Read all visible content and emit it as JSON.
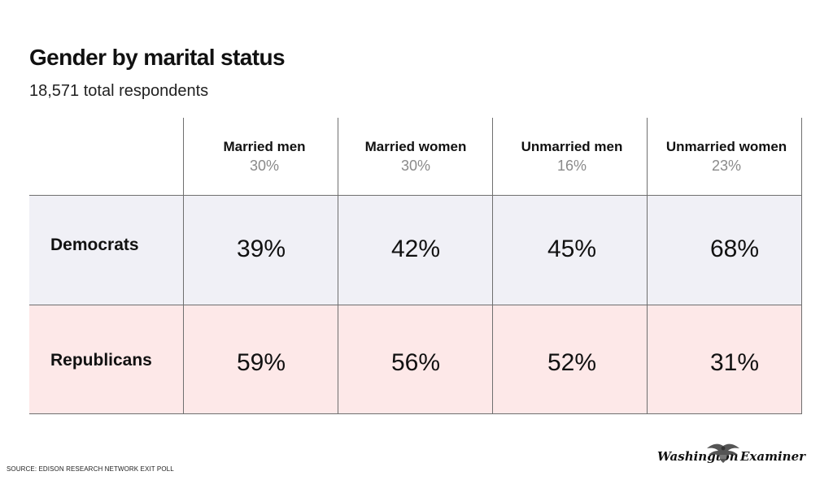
{
  "title": "Gender by marital status",
  "subtitle": "18,571 total respondents",
  "chart_data": {
    "type": "table",
    "title": "Gender by marital status",
    "subtitle": "18,571 total respondents",
    "columns": [
      {
        "name": "Married men",
        "share": "30%"
      },
      {
        "name": "Married women",
        "share": "30%"
      },
      {
        "name": "Unmarried men",
        "share": "16%"
      },
      {
        "name": "Unmarried women",
        "share": "23%"
      }
    ],
    "rows": [
      {
        "label": "Democrats",
        "values": [
          "39%",
          "42%",
          "45%",
          "68%"
        ]
      },
      {
        "label": "Republicans",
        "values": [
          "59%",
          "56%",
          "52%",
          "31%"
        ]
      }
    ],
    "row_colors": {
      "Democrats": "#f0f0f6",
      "Republicans": "#fde8e8"
    }
  },
  "source": "SOURCE: EDISON RESEARCH NETWORK EXIT POLL",
  "logo": {
    "part1": "Washington",
    "part2": "Examiner",
    "icon": "eagle-icon"
  }
}
